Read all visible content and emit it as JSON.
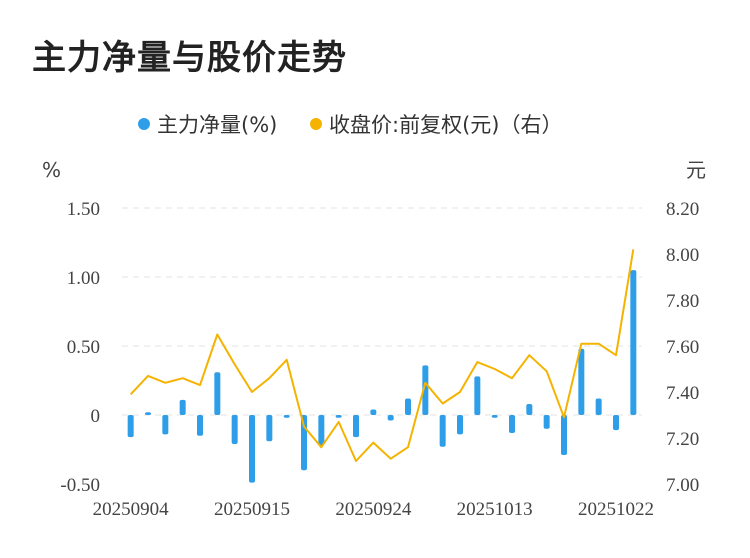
{
  "title": "主力净量与股价走势",
  "chart_data": {
    "type": "bar+line",
    "legend": [
      {
        "name": "主力净量(%)",
        "color": "#2f9ee8",
        "marker": "dot"
      },
      {
        "name": "收盘价:前复权(元)（右）",
        "color": "#f5b300",
        "marker": "dot"
      }
    ],
    "left_unit": "%",
    "right_unit": "元",
    "left_axis": {
      "min": -0.5,
      "max": 1.5,
      "ticks": [
        1.5,
        1.0,
        0.5,
        0,
        -0.5
      ],
      "tick_labels": [
        "1.50",
        "1.00",
        "0.50",
        "0",
        "-0.50"
      ]
    },
    "right_axis": {
      "min": 7.0,
      "max": 8.2,
      "ticks": [
        8.2,
        8.0,
        7.8,
        7.6,
        7.4,
        7.2,
        7.0
      ],
      "tick_labels": [
        "8.20",
        "8.00",
        "7.80",
        "7.60",
        "7.40",
        "7.20",
        "7.00"
      ]
    },
    "x_tick_labels": [
      {
        "index": 0,
        "label": "20250904"
      },
      {
        "index": 7,
        "label": "20250915"
      },
      {
        "index": 14,
        "label": "20250924"
      },
      {
        "index": 21,
        "label": "20251013"
      },
      {
        "index": 28,
        "label": "20251022"
      }
    ],
    "n_points": 30,
    "series": [
      {
        "name": "主力净量(%)",
        "axis": "left",
        "type": "bar",
        "color": "#2f9ee8",
        "values": [
          -0.16,
          0.02,
          -0.14,
          0.11,
          -0.15,
          0.31,
          -0.21,
          -0.49,
          -0.19,
          -0.02,
          -0.4,
          -0.22,
          -0.02,
          -0.16,
          0.04,
          -0.04,
          0.12,
          0.36,
          -0.23,
          -0.14,
          0.28,
          -0.02,
          -0.13,
          0.08,
          -0.1,
          -0.29,
          0.48,
          0.12,
          -0.11,
          1.05
        ]
      },
      {
        "name": "收盘价:前复权(元)（右）",
        "axis": "right",
        "type": "line",
        "color": "#f5b300",
        "values": [
          7.39,
          7.47,
          7.44,
          7.46,
          7.43,
          7.65,
          7.52,
          7.4,
          7.46,
          7.54,
          7.25,
          7.16,
          7.27,
          7.1,
          7.18,
          7.11,
          7.16,
          7.44,
          7.35,
          7.4,
          7.53,
          7.5,
          7.46,
          7.56,
          7.49,
          7.29,
          7.61,
          7.61,
          7.56,
          8.02
        ]
      }
    ]
  }
}
